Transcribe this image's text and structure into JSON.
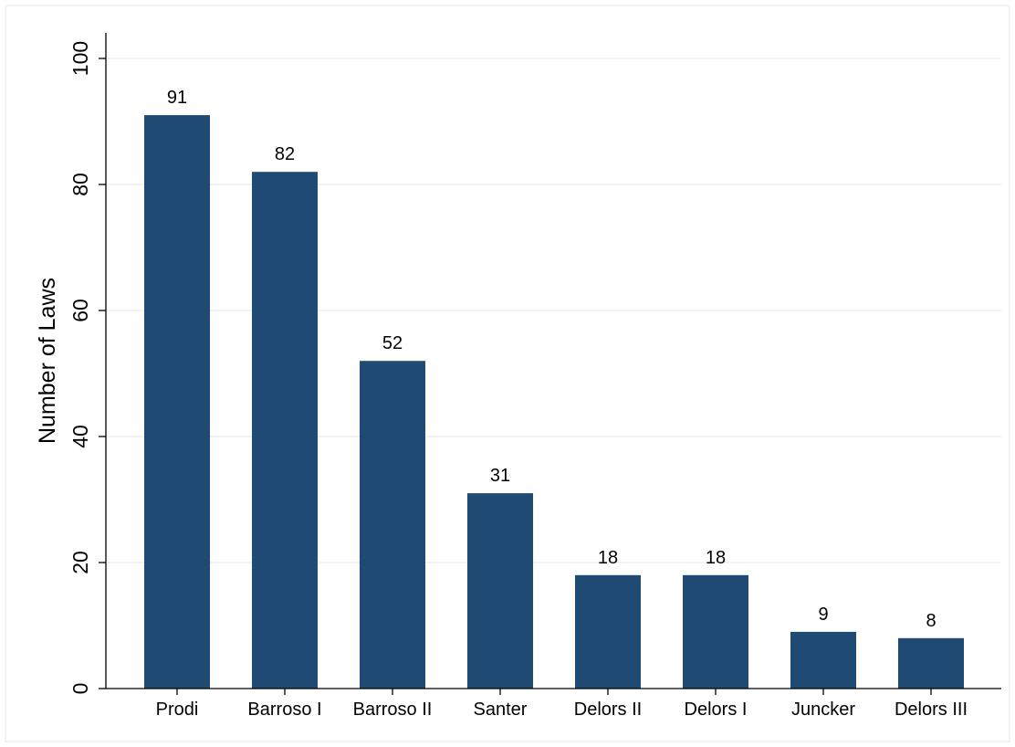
{
  "chart_data": {
    "type": "bar",
    "title": "",
    "xlabel": "",
    "ylabel": "Number of Laws",
    "categories": [
      "Prodi",
      "Barroso I",
      "Barroso II",
      "Santer",
      "Delors II",
      "Delors I",
      "Juncker",
      "Delors III"
    ],
    "values": [
      91,
      82,
      52,
      31,
      18,
      18,
      9,
      8
    ],
    "ylim": [
      0,
      100
    ],
    "yticks": [
      0,
      20,
      40,
      60,
      80,
      100
    ],
    "grid": true,
    "data_labels": true,
    "legend": "none"
  },
  "colors": {
    "bar": "#1f4a73",
    "grid": "#e6eef2",
    "axis": "#000000",
    "background": "#ffffff"
  }
}
